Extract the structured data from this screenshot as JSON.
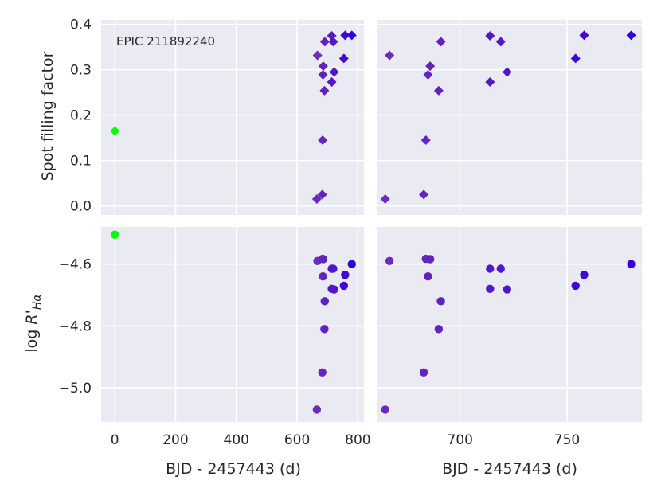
{
  "chart_data": {
    "type": "scatter",
    "annotation": "EPIC 211892240",
    "xlabel": "BJD - 2457443 (d)",
    "panels": {
      "top": {
        "ylabel": "Spot filling factor",
        "ylim": [
          -0.02,
          0.41
        ],
        "yticks": [
          0.0,
          0.1,
          0.2,
          0.3,
          0.4
        ],
        "ytick_labels": [
          "0.0",
          "0.1",
          "0.2",
          "0.3",
          "0.4"
        ],
        "marker": "diamond"
      },
      "bottom": {
        "ylabel": "log R'Hα",
        "ylim": [
          -5.11,
          -4.48
        ],
        "yticks": [
          -5.0,
          -4.8,
          -4.6
        ],
        "ytick_labels": [
          "−5.0",
          "−4.8",
          "−4.6"
        ],
        "marker": "circle"
      }
    },
    "columns": {
      "left": {
        "xlim": [
          -45,
          820
        ],
        "xticks": [
          0,
          200,
          400,
          600,
          800
        ],
        "xtick_labels": [
          "0",
          "200",
          "400",
          "600",
          "800"
        ]
      },
      "right": {
        "xlim": [
          661,
          785
        ],
        "xticks": [
          700,
          750
        ],
        "xtick_labels": [
          "700",
          "750"
        ]
      }
    },
    "grid": true,
    "color_scale": [
      "#00ff00",
      "#3300dd"
    ],
    "spot": [
      {
        "x": 0,
        "y": 0.165
      },
      {
        "x": 665,
        "y": 0.015
      },
      {
        "x": 667,
        "y": 0.332
      },
      {
        "x": 683,
        "y": 0.025
      },
      {
        "x": 684,
        "y": 0.145
      },
      {
        "x": 685,
        "y": 0.289
      },
      {
        "x": 686,
        "y": 0.308
      },
      {
        "x": 690,
        "y": 0.254
      },
      {
        "x": 691,
        "y": 0.362
      },
      {
        "x": 714,
        "y": 0.375
      },
      {
        "x": 714,
        "y": 0.273
      },
      {
        "x": 719,
        "y": 0.362
      },
      {
        "x": 722,
        "y": 0.295
      },
      {
        "x": 754,
        "y": 0.325
      },
      {
        "x": 758,
        "y": 0.376
      },
      {
        "x": 780,
        "y": 0.376
      }
    ],
    "rha": [
      {
        "x": 0,
        "y": -4.505
      },
      {
        "x": 665,
        "y": -5.07
      },
      {
        "x": 667,
        "y": -4.59
      },
      {
        "x": 683,
        "y": -4.95
      },
      {
        "x": 684,
        "y": -4.583
      },
      {
        "x": 685,
        "y": -4.64
      },
      {
        "x": 686,
        "y": -4.584
      },
      {
        "x": 690,
        "y": -4.81
      },
      {
        "x": 691,
        "y": -4.72
      },
      {
        "x": 714,
        "y": -4.615
      },
      {
        "x": 714,
        "y": -4.68
      },
      {
        "x": 719,
        "y": -4.615
      },
      {
        "x": 722,
        "y": -4.682
      },
      {
        "x": 754,
        "y": -4.67
      },
      {
        "x": 758,
        "y": -4.635
      },
      {
        "x": 780,
        "y": -4.6
      }
    ]
  }
}
